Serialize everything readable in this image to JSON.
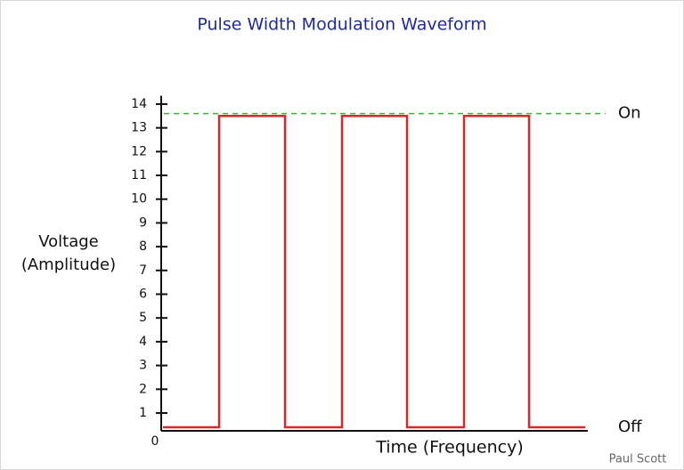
{
  "chart_data": {
    "type": "line",
    "title": "Pulse Width Modulation Waveform",
    "y_label": [
      "Voltage",
      "(Amplitude)"
    ],
    "x_label": "Time (Frequency)",
    "origin_label": "0",
    "credit": "Paul Scott",
    "xlim": [
      0,
      100
    ],
    "ylim": [
      0.25,
      14.35
    ],
    "yticks": [
      1,
      2,
      3,
      4,
      5,
      6,
      7,
      8,
      9,
      10,
      11,
      12,
      13,
      14
    ],
    "series": [
      {
        "color": "#d42a2a",
        "x": [
          0.4,
          13,
          13,
          27.8,
          27.8,
          40.6,
          40.6,
          55.2,
          55.2,
          68,
          68,
          82.6,
          82.6,
          95.2
        ],
        "values": [
          0.4,
          0.4,
          13.5,
          13.5,
          0.4,
          0.4,
          13.5,
          13.5,
          0.4,
          0.4,
          13.5,
          13.5,
          0.4,
          0.4
        ]
      }
    ],
    "reference_line": {
      "value": 13.6,
      "color": "#3cb43c"
    },
    "level_labels": [
      {
        "value": 13.6,
        "label": "On"
      },
      {
        "value": 0.4,
        "label": "Off"
      }
    ]
  }
}
